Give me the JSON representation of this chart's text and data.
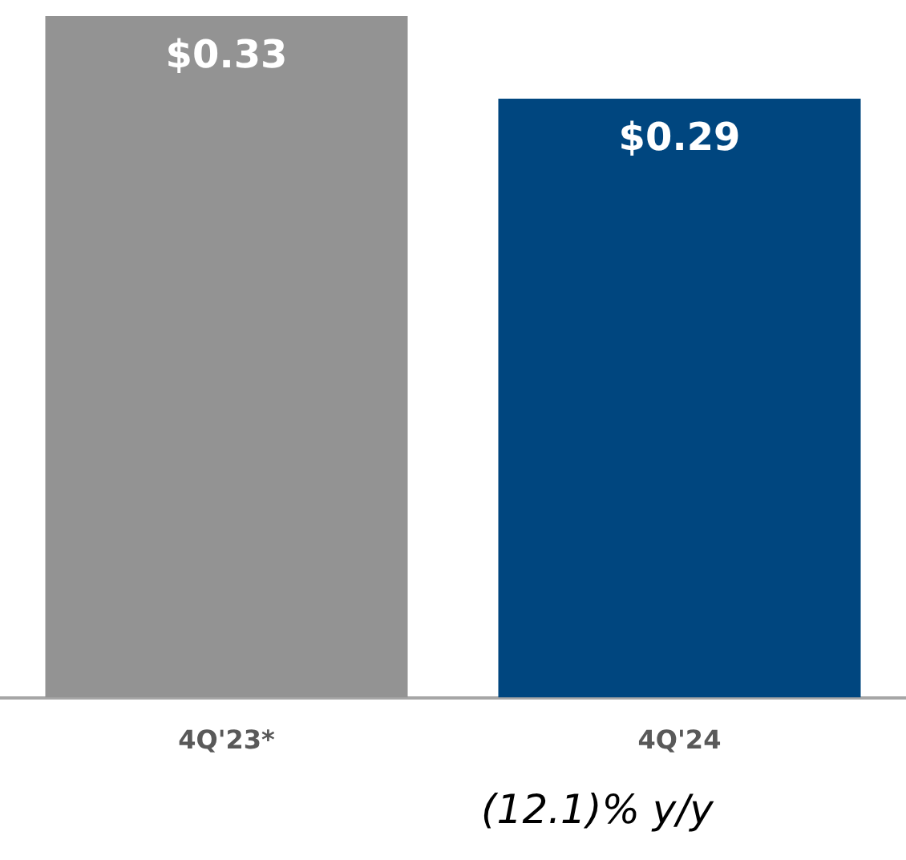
{
  "chart_data": {
    "type": "bar",
    "categories": [
      "4Q'23*",
      "4Q'24"
    ],
    "values": [
      0.33,
      0.29
    ],
    "colors": [
      "#939393",
      "#00467f"
    ],
    "value_labels": [
      "$0.33",
      "$0.29"
    ],
    "ylim": [
      0,
      0.33
    ],
    "grid": false,
    "legend": false,
    "tick_labels": "x",
    "annotations": [
      "(12.1)% y/y"
    ]
  }
}
